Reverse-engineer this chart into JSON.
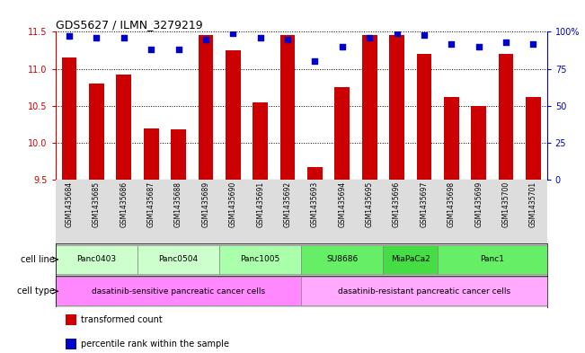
{
  "title": "GDS5627 / ILMN_3279219",
  "samples": [
    "GSM1435684",
    "GSM1435685",
    "GSM1435686",
    "GSM1435687",
    "GSM1435688",
    "GSM1435689",
    "GSM1435690",
    "GSM1435691",
    "GSM1435692",
    "GSM1435693",
    "GSM1435694",
    "GSM1435695",
    "GSM1435696",
    "GSM1435697",
    "GSM1435698",
    "GSM1435699",
    "GSM1435700",
    "GSM1435701"
  ],
  "bar_values": [
    11.15,
    10.8,
    10.92,
    10.2,
    10.18,
    11.45,
    11.25,
    10.55,
    11.45,
    9.68,
    10.75,
    11.45,
    11.45,
    11.2,
    10.62,
    10.5,
    11.2,
    10.62
  ],
  "percentile_values": [
    97,
    96,
    96,
    88,
    88,
    95,
    99,
    96,
    95,
    80,
    90,
    96,
    99,
    98,
    92,
    90,
    93,
    92
  ],
  "ylim_left": [
    9.5,
    11.5
  ],
  "yticks_left": [
    9.5,
    10.0,
    10.5,
    11.0,
    11.5
  ],
  "ylim_right": [
    0,
    100
  ],
  "yticks_right": [
    0,
    25,
    50,
    75,
    100
  ],
  "ytick_labels_right": [
    "0",
    "25",
    "50",
    "75",
    "100%"
  ],
  "bar_color": "#cc0000",
  "dot_color": "#0000cc",
  "left_axis_color": "#cc0000",
  "right_axis_color": "#0000cc",
  "cell_line_groups": [
    {
      "label": "Panc0403",
      "start": 0,
      "end": 2,
      "color": "#ccffcc"
    },
    {
      "label": "Panc0504",
      "start": 3,
      "end": 5,
      "color": "#ccffcc"
    },
    {
      "label": "Panc1005",
      "start": 6,
      "end": 8,
      "color": "#aaffaa"
    },
    {
      "label": "SU8686",
      "start": 9,
      "end": 11,
      "color": "#66ee66"
    },
    {
      "label": "MiaPaCa2",
      "start": 12,
      "end": 13,
      "color": "#44dd44"
    },
    {
      "label": "Panc1",
      "start": 14,
      "end": 17,
      "color": "#66ee66"
    }
  ],
  "cell_type_groups": [
    {
      "label": "dasatinib-sensitive pancreatic cancer cells",
      "start": 0,
      "end": 8,
      "color": "#ff88ff"
    },
    {
      "label": "dasatinib-resistant pancreatic cancer cells",
      "start": 9,
      "end": 17,
      "color": "#ffaaff"
    }
  ],
  "legend_items": [
    {
      "color": "#cc0000",
      "label": "transformed count"
    },
    {
      "color": "#0000cc",
      "label": "percentile rank within the sample"
    }
  ],
  "background_color": "#ffffff",
  "plot_bg": "#ffffff",
  "grid_color": "#888888",
  "bar_bottom": 9.5,
  "n_samples": 18
}
